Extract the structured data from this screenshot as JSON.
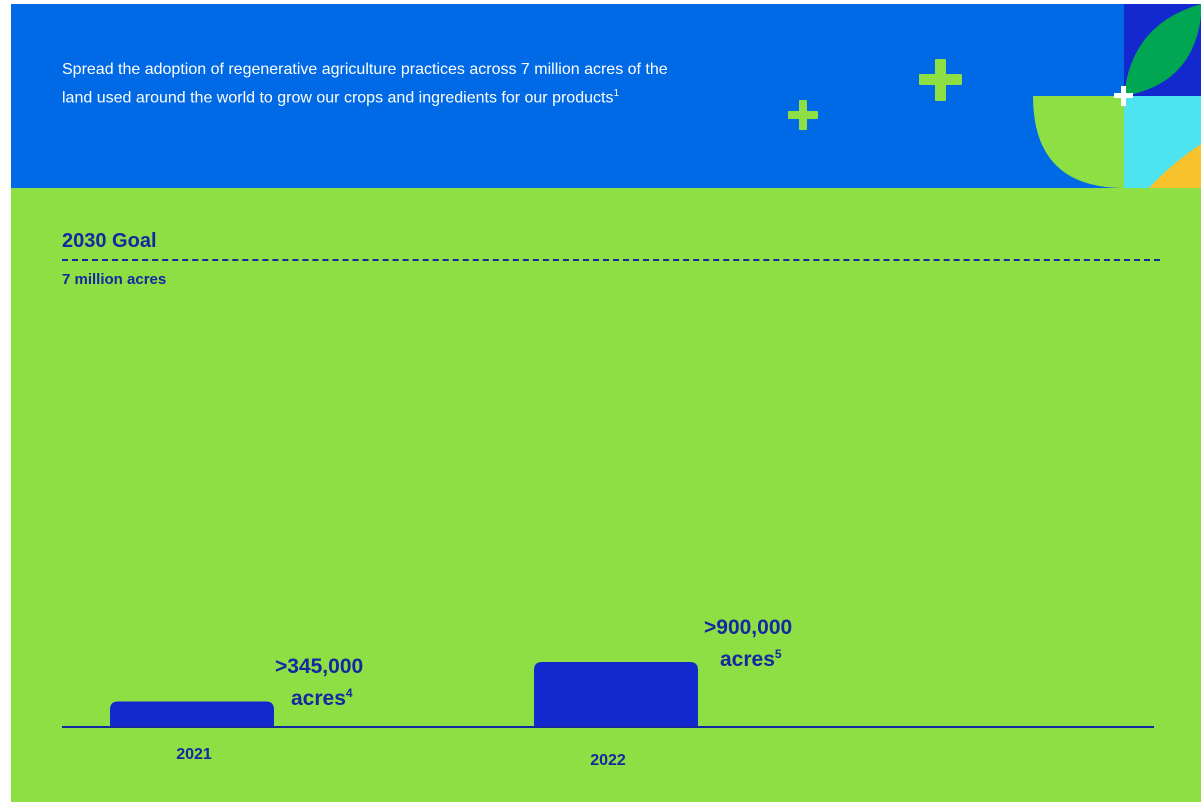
{
  "header": {
    "description": "Spread the adoption of regenerative agriculture practices across 7 million acres of the land used around the world to grow our crops and ingredients for our products",
    "description_footnote": "1"
  },
  "goal": {
    "title": "2030 Goal",
    "value": "7 million acres"
  },
  "colors": {
    "header_bg": "#0069e5",
    "panel_bg": "#8edf44",
    "bar": "#1428cf",
    "text_dark": "#1428a0",
    "leaf_green": "#00a652",
    "leaf_lime": "#8edf44",
    "cyan": "#4ee3f0",
    "yellow": "#f7c22b"
  },
  "icons": [
    "plus-icon",
    "leaf-icon"
  ],
  "chart_data": {
    "type": "bar",
    "categories": [
      "2021",
      "2022"
    ],
    "values": [
      345000,
      900000
    ],
    "value_labels": [
      {
        "amount": ">345,000",
        "unit": "acres",
        "footnote": "4"
      },
      {
        "amount": ">900,000",
        "unit": "acres",
        "footnote": "5"
      }
    ],
    "goal_line": {
      "value": 7000000,
      "label": "7 million acres"
    },
    "ylim": [
      0,
      2000000
    ],
    "grid": false,
    "title": "",
    "xlabel": "",
    "ylabel": ""
  }
}
